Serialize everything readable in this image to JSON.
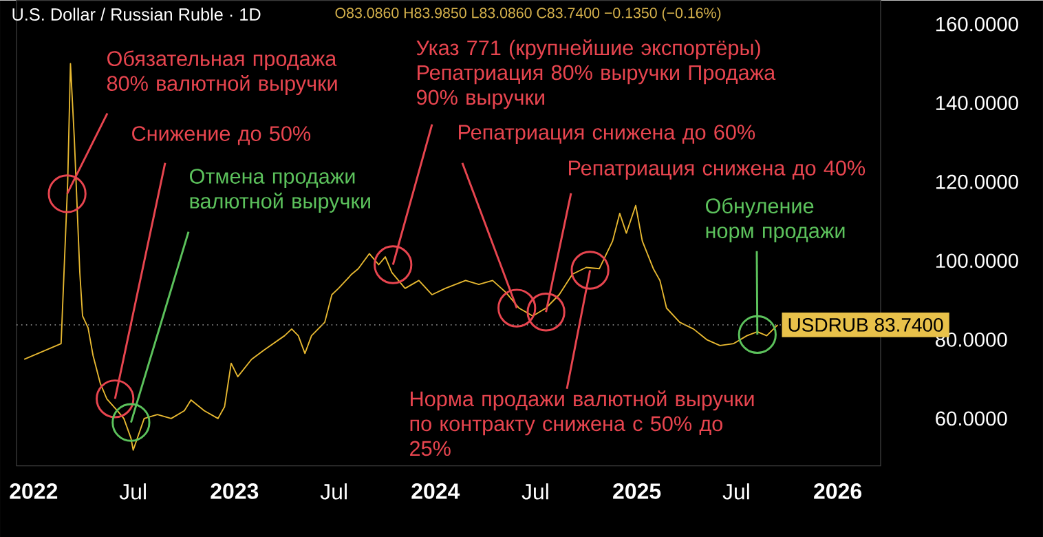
{
  "chart_data": {
    "type": "line",
    "title": "U.S. Dollar / Russian Ruble · 1D",
    "x": [
      "2021-12-15",
      "2022-02-20",
      "2022-03-04",
      "2022-03-09",
      "2022-03-16",
      "2022-03-26",
      "2022-03-31",
      "2022-04-10",
      "2022-04-19",
      "2022-05-02",
      "2022-05-14",
      "2022-06-02",
      "2022-06-14",
      "2022-06-27",
      "2022-07-01",
      "2022-07-21",
      "2022-08-14",
      "2022-09-08",
      "2022-10-02",
      "2022-10-14",
      "2022-11-07",
      "2022-12-02",
      "2022-12-14",
      "2022-12-26",
      "2023-01-07",
      "2023-02-01",
      "2023-02-25",
      "2023-04-02",
      "2023-04-15",
      "2023-04-27",
      "2023-05-09",
      "2023-05-21",
      "2023-06-14",
      "2023-06-27",
      "2023-07-09",
      "2023-08-02",
      "2023-08-14",
      "2023-09-03",
      "2023-09-20",
      "2023-10-02",
      "2023-10-14",
      "2023-11-07",
      "2023-12-02",
      "2023-12-26",
      "2024-01-19",
      "2024-02-25",
      "2024-03-20",
      "2024-04-14",
      "2024-05-08",
      "2024-06-01",
      "2024-06-26",
      "2024-07-20",
      "2024-08-13",
      "2024-09-06",
      "2024-10-01",
      "2024-10-25",
      "2024-11-18",
      "2024-12-01",
      "2024-12-13",
      "2024-12-30",
      "2025-01-11",
      "2025-01-31",
      "2025-02-12",
      "2025-02-24",
      "2025-03-20",
      "2025-04-14",
      "2025-05-08",
      "2025-06-01",
      "2025-06-26",
      "2025-07-20",
      "2025-08-08",
      "2025-08-25",
      "2025-09-14"
    ],
    "series": [
      {
        "color": "#e8b931",
        "values": [
          75,
          79,
          120,
          150,
          131,
          97,
          86,
          83,
          76,
          69,
          65,
          62,
          60,
          55,
          52,
          60,
          61,
          60,
          62,
          64.7,
          62,
          60,
          63,
          74,
          70.6,
          75,
          77.5,
          81,
          82.7,
          81,
          76.5,
          81,
          84.4,
          91.4,
          93,
          96.6,
          98,
          101.8,
          99,
          101,
          97,
          93,
          95,
          91.4,
          93,
          95,
          94,
          95,
          92,
          88,
          86,
          88,
          91.4,
          96.6,
          98.3,
          98,
          105,
          112,
          107,
          114,
          105,
          98,
          95,
          88,
          84.4,
          82.7,
          80,
          78.5,
          79,
          81,
          82,
          81,
          83.74
        ]
      }
    ],
    "xlim": [
      "2021-12-01",
      "2026-03-20"
    ],
    "ylim": [
      48,
      166
    ],
    "xticks": [
      {
        "value": "2022-01-01",
        "label": "2022"
      },
      {
        "value": "2022-07-01",
        "label": "Jul"
      },
      {
        "value": "2023-01-01",
        "label": "2023"
      },
      {
        "value": "2023-07-01",
        "label": "Jul"
      },
      {
        "value": "2024-01-01",
        "label": "2024"
      },
      {
        "value": "2024-07-01",
        "label": "Jul"
      },
      {
        "value": "2025-01-01",
        "label": "2025"
      },
      {
        "value": "2025-07-01",
        "label": "Jul"
      },
      {
        "value": "2026-01-01",
        "label": "2026"
      }
    ],
    "yticks": [
      {
        "value": 60,
        "label": "60.0000"
      },
      {
        "value": 80,
        "label": "80.0000"
      },
      {
        "value": 100,
        "label": "100.0000"
      },
      {
        "value": 120,
        "label": "120.0000"
      },
      {
        "value": 140,
        "label": "140.0000"
      },
      {
        "value": 160,
        "label": "160.0000"
      }
    ],
    "ref_lines": [
      {
        "axis": "y",
        "value": 83.74,
        "label": "USDRUB 83.7400",
        "color": "#888888",
        "line_style": "dotted"
      }
    ],
    "annotations": [
      "O83.0860 H83.9850 L83.0860 C83.7400 −0.1350 (−0.16%)",
      {
        "text": "Обязательная продажа 80% валютной выручки",
        "x": "2022-03-03",
        "y": 117
      },
      {
        "text": "Снижение до 50%",
        "x": "2022-05-29",
        "y": 65
      },
      {
        "text": "Отмена продажи валютной выручки",
        "x": "2022-06-27",
        "y": 59
      },
      {
        "text": "Указ 771 (крупнейшие экспортёры) Репатриация 80% выручки Продажа 90% выручки",
        "x": "2023-10-16",
        "y": 99
      },
      {
        "text": "Репатриация снижена до 60%",
        "x": "2024-05-28",
        "y": 88
      },
      {
        "text": "Репатриация снижена до 40%",
        "x": "2024-07-20",
        "y": 87
      },
      {
        "text": "Норма продажи валютной выручки по контракту снижена с 50% до 25%",
        "x": "2024-10-08",
        "y": 97.6
      },
      {
        "text": "Обнуление норм продажи",
        "x": "2025-08-08",
        "y": 81.3
      }
    ]
  }
}
